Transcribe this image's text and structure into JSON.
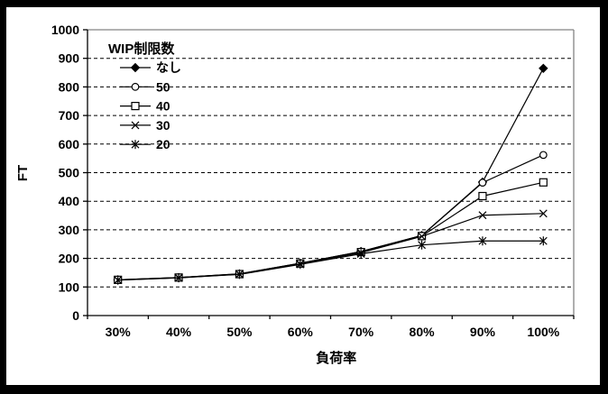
{
  "frame": {
    "border_color": "#000000",
    "canvas_background": "#ffffff"
  },
  "chart_data": {
    "type": "line",
    "title": "",
    "xlabel": "負荷率",
    "ylabel": "FT",
    "categories": [
      "30%",
      "40%",
      "50%",
      "60%",
      "70%",
      "80%",
      "90%",
      "100%"
    ],
    "ylim": [
      0,
      1000
    ],
    "y_ticks": [
      0,
      100,
      200,
      300,
      400,
      500,
      600,
      700,
      800,
      900,
      1000
    ],
    "grid": "horizontal-dashed",
    "legend": {
      "title": "WIP制限数",
      "position": "top-left-inside",
      "entries": [
        "なし",
        "50",
        "40",
        "30",
        "20"
      ]
    },
    "series": [
      {
        "name": "なし",
        "marker": "diamond-filled",
        "values": [
          125,
          133,
          146,
          183,
          224,
          280,
          467,
          865
        ]
      },
      {
        "name": "50",
        "marker": "circle-open",
        "values": [
          125,
          133,
          146,
          183,
          224,
          280,
          465,
          562
        ]
      },
      {
        "name": "40",
        "marker": "square-open",
        "values": [
          125,
          133,
          145,
          182,
          222,
          278,
          418,
          466
        ]
      },
      {
        "name": "30",
        "marker": "x",
        "values": [
          124,
          132,
          145,
          181,
          220,
          277,
          351,
          357
        ]
      },
      {
        "name": "20",
        "marker": "asterisk",
        "values": [
          124,
          132,
          144,
          179,
          216,
          247,
          261,
          261
        ]
      }
    ],
    "colors": {
      "series_line": "#000000",
      "grid_line": "#000000",
      "axis_line": "#000000",
      "plot_border": "#848484",
      "text": "#000000",
      "marker_fill_open": "#ffffff"
    }
  }
}
